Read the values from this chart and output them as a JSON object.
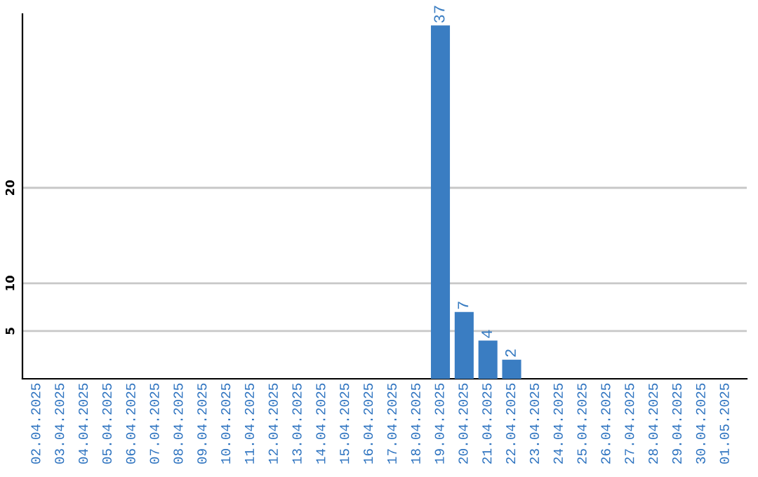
{
  "chart_data": {
    "type": "bar",
    "categories": [
      "02.04.2025",
      "03.04.2025",
      "04.04.2025",
      "05.04.2025",
      "06.04.2025",
      "07.04.2025",
      "08.04.2025",
      "09.04.2025",
      "10.04.2025",
      "11.04.2025",
      "12.04.2025",
      "13.04.2025",
      "14.04.2025",
      "15.04.2025",
      "16.04.2025",
      "17.04.2025",
      "18.04.2025",
      "19.04.2025",
      "20.04.2025",
      "21.04.2025",
      "22.04.2025",
      "23.04.2025",
      "24.04.2025",
      "25.04.2025",
      "26.04.2025",
      "27.04.2025",
      "28.04.2025",
      "29.04.2025",
      "30.04.2025",
      "01.05.2025"
    ],
    "values": [
      0,
      0,
      0,
      0,
      0,
      0,
      0,
      0,
      0,
      0,
      0,
      0,
      0,
      0,
      0,
      0,
      0,
      37,
      7,
      4,
      2,
      0,
      0,
      0,
      0,
      0,
      0,
      0,
      0,
      0
    ],
    "value_labels": [
      null,
      null,
      null,
      null,
      null,
      null,
      null,
      null,
      null,
      null,
      null,
      null,
      null,
      null,
      null,
      null,
      null,
      "37",
      "7",
      "4",
      "2",
      null,
      null,
      null,
      null,
      null,
      null,
      null,
      null,
      null
    ],
    "color": "#3a7dc2",
    "ylim": [
      0,
      38.2
    ],
    "yticks": [
      5,
      10,
      20
    ],
    "grid": "y"
  }
}
